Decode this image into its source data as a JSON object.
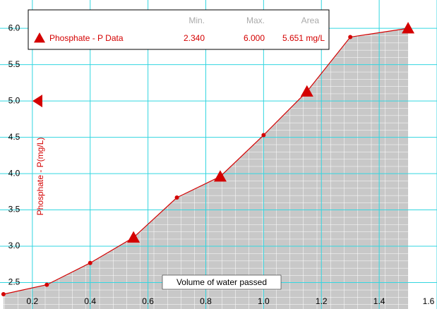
{
  "chart_data": {
    "type": "area",
    "x_label": "Volume of water passed",
    "y_label": "Phosphate - P(mg/L)",
    "x": [
      0.1,
      0.25,
      0.4,
      0.55,
      0.7,
      0.85,
      1.0,
      1.15,
      1.3,
      1.5
    ],
    "series": [
      {
        "name": "Phosphate - P Data",
        "color": "#d40000",
        "values": [
          2.34,
          2.47,
          2.77,
          3.12,
          3.67,
          3.96,
          4.53,
          5.13,
          5.88,
          6.0
        ]
      }
    ],
    "legend_headers": [
      "Min.",
      "Max.",
      "Area"
    ],
    "legend_stats": [
      {
        "value": 2.34,
        "label": "2.340"
      },
      {
        "value": 6.0,
        "label": "6.000"
      },
      {
        "value": 5.651,
        "label": "5.651 mg/L"
      }
    ],
    "xlim": [
      0.088,
      1.6
    ],
    "ylim": [
      2.136,
      6.39
    ],
    "xticks": [
      0.2,
      0.4,
      0.6,
      0.8,
      {
        "value": 1.0,
        "label": "1.0"
      },
      1.2,
      1.4,
      1.6
    ],
    "yticks": [
      {
        "value": 2.5,
        "label": "2.5"
      },
      {
        "value": 3.0,
        "label": "3.0"
      },
      {
        "value": 3.5,
        "label": "3.5"
      },
      {
        "value": 4.0,
        "label": "4.0"
      },
      {
        "value": 4.5,
        "label": "4.5"
      },
      {
        "value": 5.0,
        "label": "5.0"
      },
      {
        "value": 5.5,
        "label": "5.5"
      },
      {
        "value": 6.0,
        "label": "6.0"
      }
    ],
    "grid": true,
    "grid_color": "#33d6e0",
    "fill_color": "#c8c8c8"
  }
}
